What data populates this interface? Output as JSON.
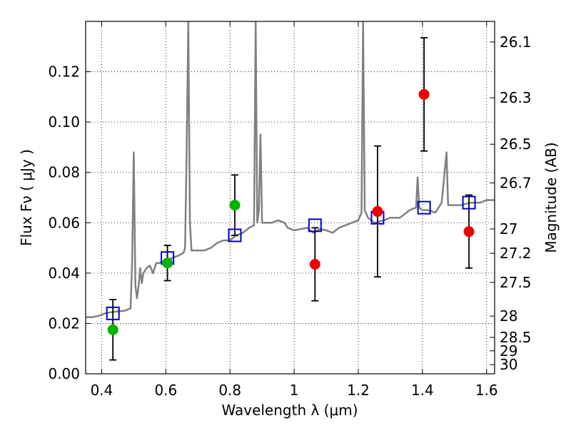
{
  "chart_data": {
    "type": "scatter",
    "xlabel": "Wavelength  λ (μm)",
    "ylabel": "Flux  Fν  ( μJy )",
    "y2label": "Magnitude (AB)",
    "xlim": [
      0.35,
      1.625
    ],
    "ylim": [
      0.0,
      0.14
    ],
    "grid": true,
    "x_ticks": [
      0.4,
      0.6,
      0.8,
      1.0,
      1.2,
      1.4,
      1.6
    ],
    "x_tick_labels": [
      "0.4",
      "0.6",
      "0.8",
      "1",
      "1.2",
      "1.4",
      "1.6"
    ],
    "y_ticks": [
      0.0,
      0.02,
      0.04,
      0.06,
      0.08,
      0.1,
      0.12
    ],
    "y_tick_labels": [
      "0.00",
      "0.02",
      "0.04",
      "0.06",
      "0.08",
      "0.10",
      "0.12"
    ],
    "mag_ticks": [
      "26.1",
      "26.3",
      "26.5",
      "26.7",
      "27",
      "27.2",
      "27.5",
      "28",
      "28.5",
      "29",
      "30"
    ],
    "colors": {
      "model": "#808080",
      "model_photometry": "#0000cc",
      "green_points": "#00b400",
      "red_points": "#ee0000",
      "errorbar": "#000000"
    },
    "model_spectrum": {
      "name": "",
      "x": [
        0.35,
        0.37,
        0.39,
        0.41,
        0.43,
        0.45,
        0.47,
        0.49,
        0.495,
        0.5,
        0.505,
        0.51,
        0.515,
        0.52,
        0.525,
        0.53,
        0.54,
        0.55,
        0.56,
        0.57,
        0.58,
        0.59,
        0.6,
        0.62,
        0.64,
        0.655,
        0.66,
        0.665,
        0.67,
        0.675,
        0.68,
        0.7,
        0.72,
        0.74,
        0.76,
        0.78,
        0.8,
        0.82,
        0.84,
        0.86,
        0.875,
        0.88,
        0.885,
        0.89,
        0.895,
        0.9,
        0.905,
        0.91,
        0.93,
        0.95,
        0.97,
        0.98,
        1.0,
        1.02,
        1.04,
        1.06,
        1.08,
        1.1,
        1.12,
        1.14,
        1.16,
        1.18,
        1.2,
        1.21,
        1.215,
        1.22,
        1.23,
        1.25,
        1.28,
        1.3,
        1.33,
        1.36,
        1.38,
        1.385,
        1.39,
        1.4,
        1.42,
        1.44,
        1.46,
        1.475,
        1.48,
        1.49,
        1.52,
        1.55,
        1.58,
        1.6,
        1.625
      ],
      "y": [
        0.0225,
        0.0225,
        0.023,
        0.024,
        0.0245,
        0.0248,
        0.025,
        0.026,
        0.045,
        0.088,
        0.035,
        0.03,
        0.035,
        0.042,
        0.036,
        0.04,
        0.042,
        0.043,
        0.04,
        0.044,
        0.044,
        0.0445,
        0.045,
        0.046,
        0.047,
        0.048,
        0.05,
        0.09,
        0.14,
        0.06,
        0.049,
        0.049,
        0.049,
        0.05,
        0.052,
        0.053,
        0.053,
        0.055,
        0.056,
        0.058,
        0.059,
        0.14,
        0.06,
        0.065,
        0.095,
        0.06,
        0.06,
        0.06,
        0.06,
        0.061,
        0.06,
        0.058,
        0.057,
        0.0575,
        0.058,
        0.056,
        0.0575,
        0.057,
        0.056,
        0.058,
        0.059,
        0.06,
        0.061,
        0.064,
        0.14,
        0.065,
        0.062,
        0.06,
        0.061,
        0.062,
        0.062,
        0.065,
        0.066,
        0.078,
        0.066,
        0.065,
        0.065,
        0.064,
        0.068,
        0.088,
        0.067,
        0.067,
        0.067,
        0.068,
        0.068,
        0.069,
        0.069
      ]
    },
    "series": [
      {
        "name": "",
        "marker": "open-square",
        "points": [
          {
            "x": 0.435,
            "y": 0.024
          },
          {
            "x": 0.605,
            "y": 0.046
          },
          {
            "x": 0.815,
            "y": 0.055
          },
          {
            "x": 1.065,
            "y": 0.059
          },
          {
            "x": 1.26,
            "y": 0.062
          },
          {
            "x": 1.405,
            "y": 0.066
          },
          {
            "x": 1.545,
            "y": 0.068
          }
        ]
      },
      {
        "name": "",
        "marker": "filled-circle",
        "points": [
          {
            "x": 0.435,
            "y": 0.0175,
            "err": 0.012
          },
          {
            "x": 0.605,
            "y": 0.044,
            "err": 0.007
          },
          {
            "x": 0.815,
            "y": 0.067,
            "err": 0.012
          }
        ]
      },
      {
        "name": "",
        "marker": "filled-circle",
        "points": [
          {
            "x": 1.065,
            "y": 0.0435,
            "err": 0.0145
          },
          {
            "x": 1.26,
            "y": 0.0645,
            "err": 0.026
          },
          {
            "x": 1.405,
            "y": 0.111,
            "err": 0.0225
          },
          {
            "x": 1.545,
            "y": 0.0565,
            "err": 0.0145
          }
        ]
      }
    ]
  }
}
